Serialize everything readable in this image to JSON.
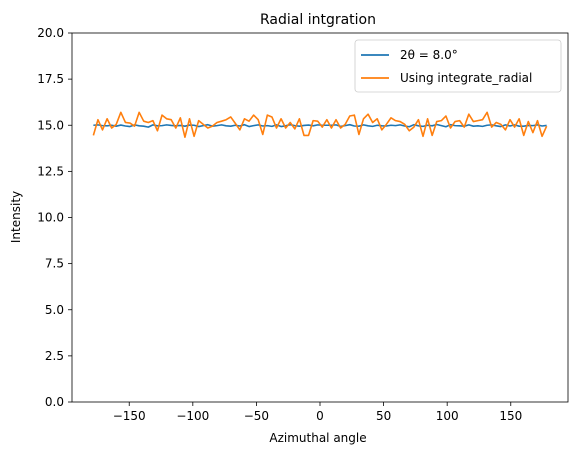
{
  "chart_data": {
    "type": "line",
    "title": "Radial intgration",
    "xlabel": "Azimuthal angle",
    "ylabel": "Intensity",
    "xlim": [
      -195,
      195
    ],
    "ylim": [
      0,
      20
    ],
    "xticks": [
      -150,
      -100,
      -50,
      0,
      50,
      100,
      150
    ],
    "xtick_labels": [
      "−150",
      "−100",
      "−50",
      "0",
      "50",
      "100",
      "150"
    ],
    "yticks": [
      0,
      2.5,
      5,
      7.5,
      10,
      12.5,
      15,
      17.5,
      20
    ],
    "ytick_labels": [
      "0.0",
      "2.5",
      "5.0",
      "7.5",
      "10.0",
      "12.5",
      "15.0",
      "17.5",
      "20.0"
    ],
    "grid": false,
    "legend_position": "top-right",
    "x": [
      -178.2,
      -174.6,
      -171.0,
      -167.4,
      -163.8,
      -160.2,
      -156.6,
      -153.0,
      -149.4,
      -145.8,
      -142.2,
      -138.6,
      -135.0,
      -131.4,
      -127.8,
      -124.2,
      -120.6,
      -117.0,
      -113.4,
      -109.8,
      -106.2,
      -102.6,
      -99.0,
      -95.4,
      -91.8,
      -88.2,
      -84.6,
      -81.0,
      -77.4,
      -73.8,
      -70.2,
      -66.6,
      -63.0,
      -59.4,
      -55.8,
      -52.2,
      -48.6,
      -45.0,
      -41.4,
      -37.8,
      -34.2,
      -30.6,
      -27.0,
      -23.4,
      -19.8,
      -16.2,
      -12.6,
      -9.0,
      -5.4,
      -1.8,
      1.8,
      5.4,
      9.0,
      12.6,
      16.2,
      19.8,
      23.4,
      27.0,
      30.6,
      34.2,
      37.8,
      41.4,
      45.0,
      48.6,
      52.2,
      55.8,
      59.4,
      63.0,
      66.6,
      70.2,
      73.8,
      77.4,
      81.0,
      84.6,
      88.2,
      91.8,
      95.4,
      99.0,
      102.6,
      106.2,
      109.8,
      113.4,
      117.0,
      120.6,
      124.2,
      127.8,
      131.4,
      135.0,
      138.6,
      142.2,
      145.8,
      149.4,
      153.0,
      156.6,
      160.2,
      163.8,
      167.4,
      171.0,
      174.6,
      178.2
    ],
    "series": [
      {
        "name": "2θ = 8.0°",
        "color": "#1f77b4",
        "values": [
          15.0,
          15.02,
          14.98,
          14.97,
          15.0,
          14.95,
          15.01,
          14.96,
          14.93,
          15.02,
          14.97,
          14.95,
          14.9,
          15.02,
          14.97,
          14.98,
          15.02,
          14.99,
          14.97,
          14.99,
          14.95,
          15.01,
          15.0,
          14.93,
          14.98,
          15.03,
          14.95,
          14.98,
          15.02,
          14.97,
          14.95,
          15.0,
          14.96,
          15.03,
          14.93,
          14.98,
          15.02,
          14.96,
          14.98,
          14.94,
          15.02,
          14.93,
          14.97,
          15.03,
          14.98,
          14.95,
          14.99,
          15.01,
          14.97,
          15.02,
          15.0,
          15.0,
          15.0,
          15.02,
          14.94,
          14.98,
          15.03,
          14.96,
          14.95,
          15.02,
          14.97,
          14.94,
          15.0,
          14.97,
          14.96,
          15.0,
          14.98,
          15.02,
          14.96,
          14.92,
          15.03,
          14.97,
          14.94,
          15.0,
          14.97,
          15.04,
          14.98,
          14.92,
          15.03,
          14.98,
          14.97,
          14.95,
          15.02,
          14.95,
          14.97,
          14.94,
          15.0,
          15.02,
          14.97,
          14.93,
          15.02,
          14.96,
          15.02,
          14.95,
          14.95,
          14.99,
          14.98,
          15.02,
          14.96,
          14.99
        ]
      },
      {
        "name": "Using integrate_radial",
        "color": "#ff7f0e",
        "values": [
          14.45,
          15.3,
          14.75,
          15.35,
          14.85,
          15.05,
          15.7,
          15.15,
          15.12,
          14.95,
          15.7,
          15.22,
          15.15,
          15.25,
          14.7,
          15.55,
          15.35,
          15.3,
          14.85,
          15.4,
          14.35,
          15.35,
          14.4,
          15.25,
          15.05,
          14.85,
          14.95,
          15.15,
          15.22,
          15.3,
          15.45,
          15.1,
          14.75,
          15.35,
          15.22,
          15.55,
          15.3,
          14.5,
          15.55,
          15.45,
          14.85,
          15.35,
          14.85,
          15.15,
          14.8,
          15.35,
          14.45,
          14.45,
          15.25,
          15.22,
          14.9,
          15.3,
          14.85,
          15.3,
          14.85,
          15.05,
          15.5,
          15.55,
          14.5,
          15.35,
          15.6,
          15.15,
          15.35,
          14.75,
          15.05,
          15.4,
          15.25,
          15.2,
          15.05,
          14.7,
          14.9,
          15.3,
          14.4,
          15.35,
          14.45,
          15.2,
          15.25,
          15.5,
          14.85,
          15.2,
          15.25,
          14.9,
          15.6,
          15.2,
          15.25,
          15.3,
          15.7,
          14.9,
          15.15,
          15.05,
          14.75,
          15.3,
          14.9,
          15.35,
          14.45,
          15.2,
          14.6,
          15.25,
          14.4,
          14.95
        ]
      }
    ]
  }
}
